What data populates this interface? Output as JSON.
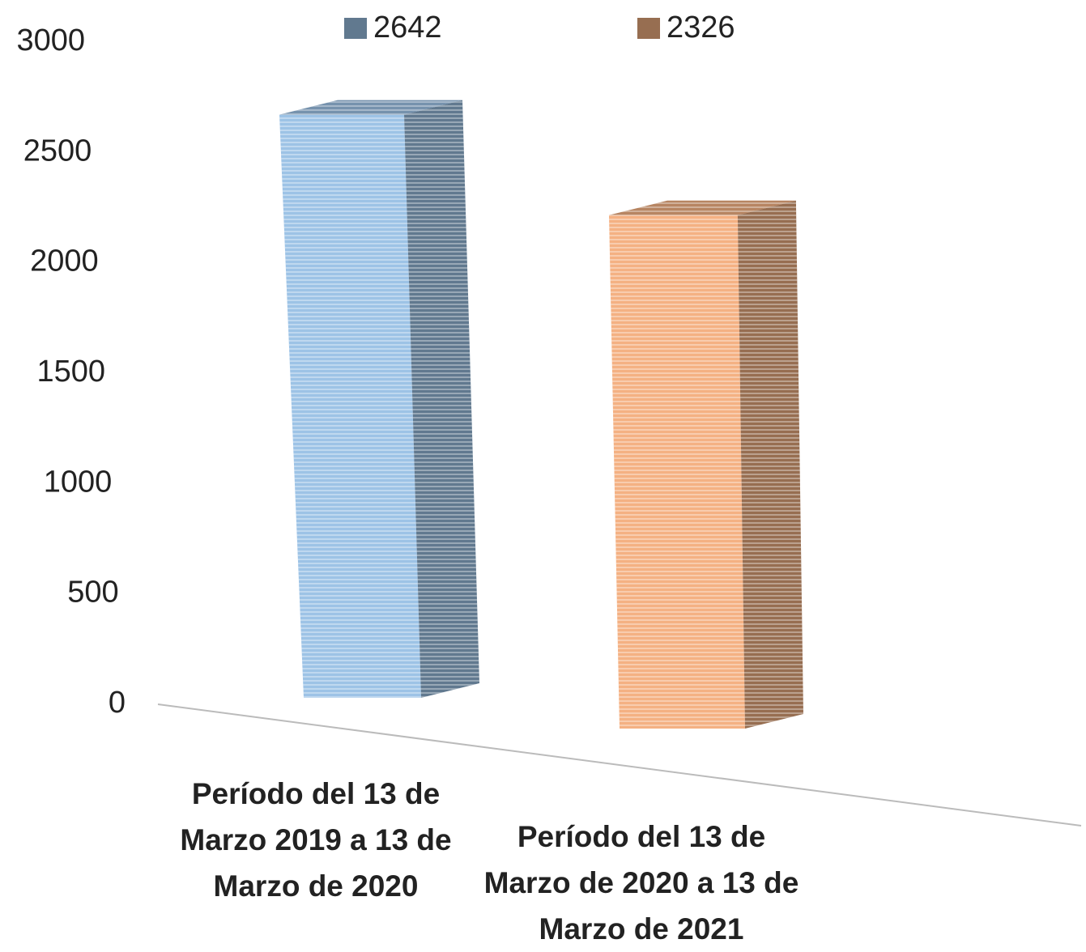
{
  "chart_data": {
    "type": "bar3d",
    "categories": [
      "Período del 13 de Marzo 2019 a 13 de Marzo de 2020",
      "Período del 13 de Marzo de 2020 a 13 de Marzo de 2021"
    ],
    "series": [
      {
        "name": "2642",
        "color": "#9dc3e6",
        "values": [
          2642,
          null
        ]
      },
      {
        "name": "2326",
        "color": "#f4b183",
        "values": [
          null,
          2326
        ]
      }
    ],
    "ylim": [
      0,
      3000
    ],
    "yticks": [
      0,
      500,
      1000,
      1500,
      2000,
      2500,
      3000
    ],
    "legend": "top"
  }
}
